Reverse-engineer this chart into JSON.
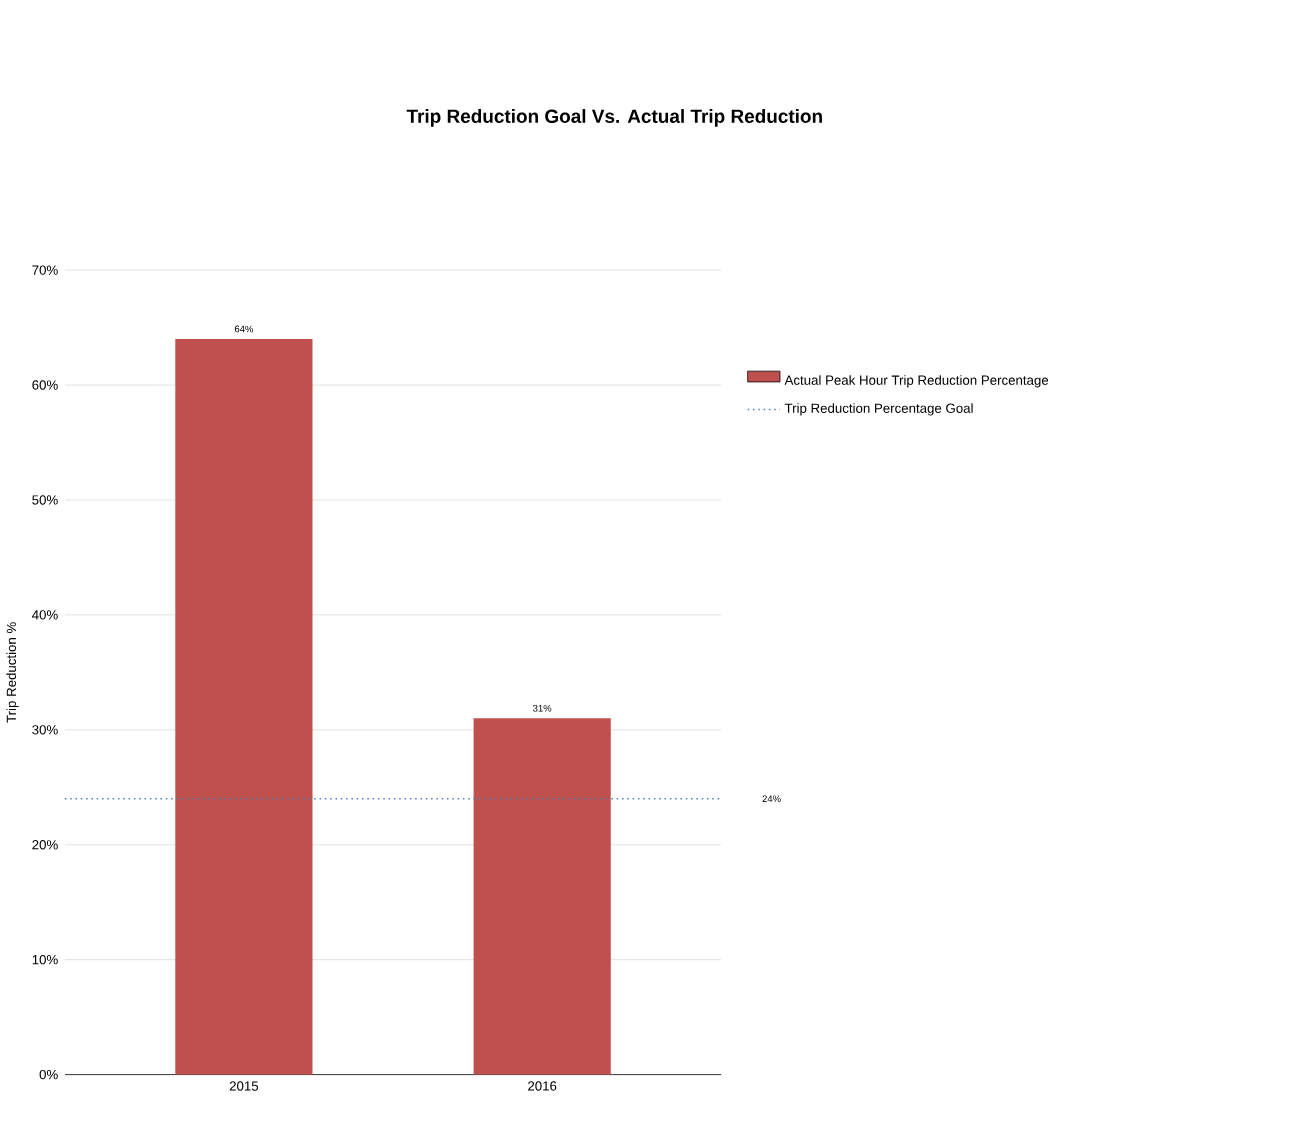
{
  "chart_data": {
    "type": "bar",
    "title": "Trip Reduction Goal Vs. Actual Trip Reduction",
    "ylabel": "Trip Reduction %",
    "categories": [
      "2015",
      "2016"
    ],
    "series": [
      {
        "name": "Actual Peak Hour Trip Reduction Percentage",
        "color": "#c0504d",
        "values": [
          64,
          31
        ],
        "value_labels": [
          "64%",
          "31%"
        ]
      }
    ],
    "ylim": [
      0,
      70
    ],
    "yticks": [
      {
        "value": 0,
        "label": "0%"
      },
      {
        "value": 10,
        "label": "10%"
      },
      {
        "value": 20,
        "label": "20%"
      },
      {
        "value": 30,
        "label": "30%"
      },
      {
        "value": 40,
        "label": "40%"
      },
      {
        "value": 50,
        "label": "50%"
      },
      {
        "value": 60,
        "label": "60%"
      },
      {
        "value": 70,
        "label": "70%"
      }
    ],
    "ref_lines": [
      {
        "axis": "y",
        "value": 24,
        "label": "Trip Reduction Percentage Goal",
        "color": "#4f81bd",
        "line_style": "dotted"
      }
    ],
    "annotations": [
      "24%"
    ],
    "grid": "y",
    "legend": "right"
  }
}
